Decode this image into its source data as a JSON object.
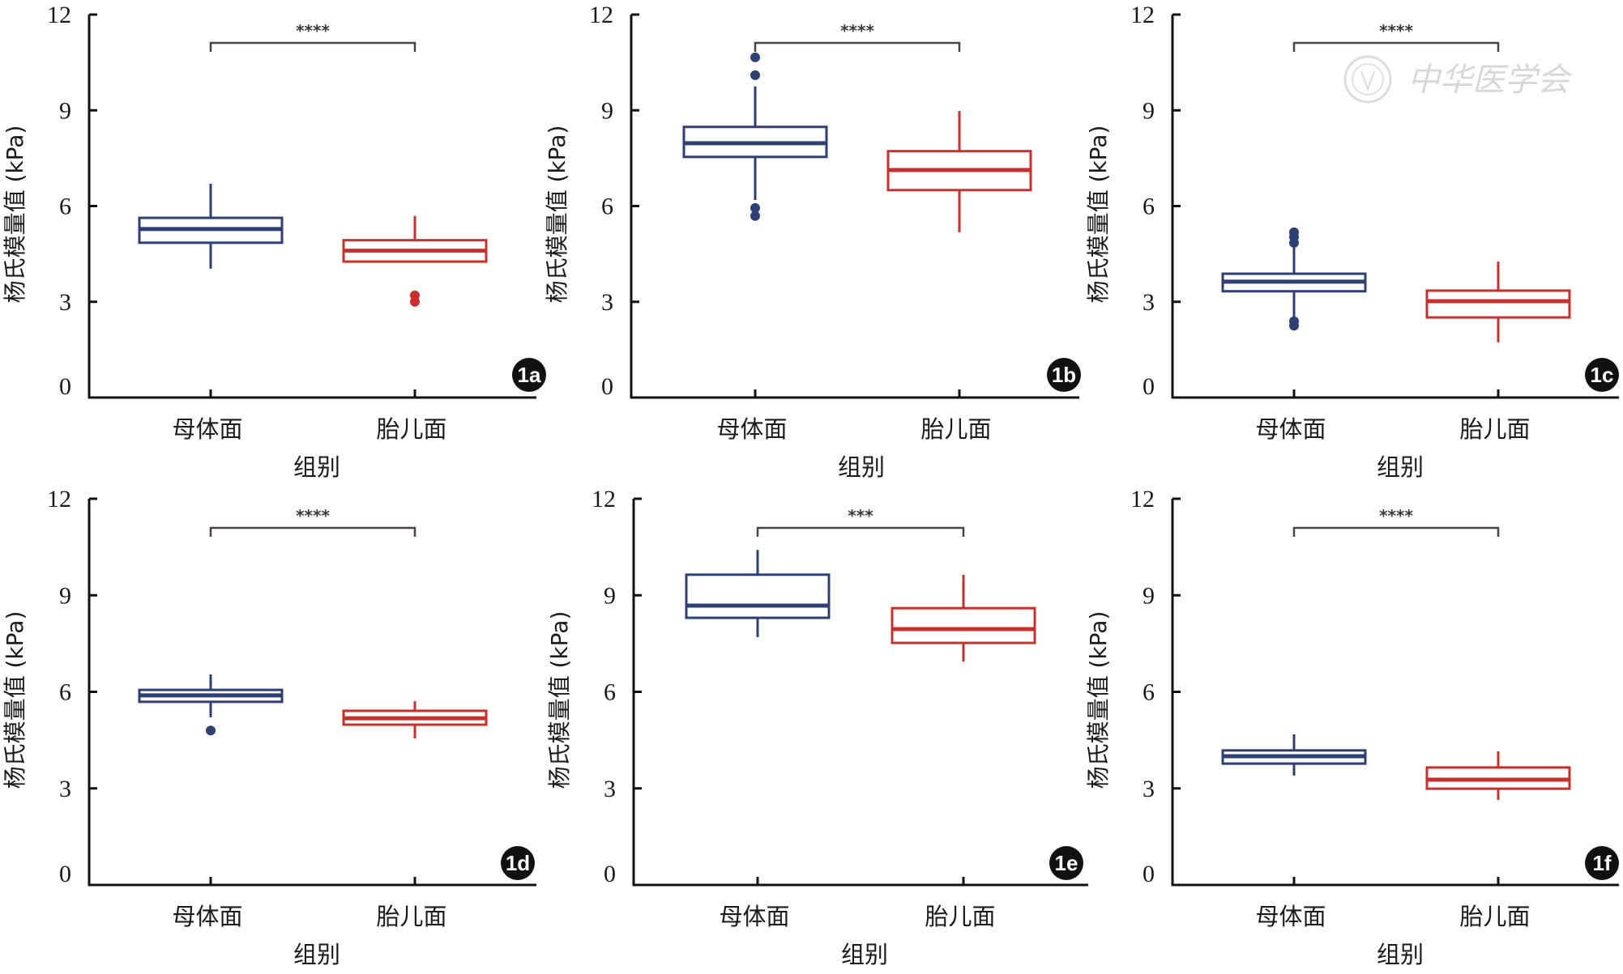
{
  "watermark": {
    "text": "中华医学会"
  },
  "colors": {
    "maternal": "#2e3f74",
    "fetal": "#c8312b",
    "bracket": "#4a4242",
    "axis": "#111111"
  },
  "chart_data": [
    {
      "type": "box",
      "panel": "1a",
      "ylabel": "杨氏模量值 (kPa)",
      "xlabel": "组别",
      "ylim": [
        0,
        12
      ],
      "yticks": [
        "0",
        "3",
        "6",
        "9",
        "12"
      ],
      "categories": [
        "母体面",
        "胎儿面"
      ],
      "significance": "****",
      "series": [
        {
          "name": "母体面",
          "whisker_low": 4.04,
          "q1": 4.85,
          "median": 5.28,
          "q3": 5.63,
          "whisker_high": 6.7,
          "outliers": []
        },
        {
          "name": "胎儿面",
          "whisker_low": 4.26,
          "q1": 4.26,
          "median": 4.6,
          "q3": 4.93,
          "whisker_high": 5.69,
          "outliers": [
            3.2,
            3.0
          ]
        }
      ]
    },
    {
      "type": "box",
      "panel": "1b",
      "ylabel": "杨氏模量值 (kPa)",
      "xlabel": "组别",
      "ylim": [
        0,
        12
      ],
      "yticks": [
        "0",
        "3",
        "6",
        "9",
        "12"
      ],
      "categories": [
        "母体面",
        "胎儿面"
      ],
      "significance": "****",
      "series": [
        {
          "name": "母体面",
          "whisker_low": 6.19,
          "q1": 7.54,
          "median": 7.97,
          "q3": 8.48,
          "whisker_high": 9.75,
          "outliers": [
            10.66,
            10.1,
            5.94,
            5.69
          ]
        },
        {
          "name": "胎儿面",
          "whisker_low": 5.18,
          "q1": 6.5,
          "median": 7.13,
          "q3": 7.72,
          "whisker_high": 8.98,
          "outliers": []
        }
      ]
    },
    {
      "type": "box",
      "panel": "1c",
      "ylabel": "杨氏模量值 (kPa)",
      "xlabel": "组别",
      "ylim": [
        0,
        12
      ],
      "yticks": [
        "0",
        "3",
        "6",
        "9",
        "12"
      ],
      "categories": [
        "母体面",
        "胎儿面"
      ],
      "significance": "****",
      "series": [
        {
          "name": "母体面",
          "whisker_low": 2.45,
          "q1": 3.33,
          "median": 3.63,
          "q3": 3.88,
          "whisker_high": 4.8,
          "outliers": [
            5.18,
            5.03,
            4.85,
            2.39,
            2.25
          ]
        },
        {
          "name": "胎儿面",
          "whisker_low": 1.73,
          "q1": 2.51,
          "median": 3.02,
          "q3": 3.35,
          "whisker_high": 4.26,
          "outliers": []
        }
      ]
    },
    {
      "type": "box",
      "panel": "1d",
      "ylabel": "杨氏模量值 (kPa)",
      "xlabel": "组别",
      "ylim": [
        0,
        12
      ],
      "yticks": [
        "0",
        "3",
        "6",
        "9",
        "12"
      ],
      "categories": [
        "母体面",
        "胎儿面"
      ],
      "significance": "****",
      "series": [
        {
          "name": "母体面",
          "whisker_low": 5.21,
          "q1": 5.69,
          "median": 5.89,
          "q3": 6.06,
          "whisker_high": 6.54,
          "outliers": [
            4.8
          ]
        },
        {
          "name": "胎儿面",
          "whisker_low": 4.55,
          "q1": 4.98,
          "median": 5.18,
          "q3": 5.41,
          "whisker_high": 5.71,
          "outliers": []
        }
      ]
    },
    {
      "type": "box",
      "panel": "1e",
      "ylabel": "杨氏模量值 (kPa)",
      "xlabel": "组别",
      "ylim": [
        0,
        12
      ],
      "yticks": [
        "0",
        "3",
        "6",
        "9",
        "12"
      ],
      "categories": [
        "母体面",
        "胎儿面"
      ],
      "significance": "***",
      "series": [
        {
          "name": "母体面",
          "whisker_low": 7.7,
          "q1": 8.3,
          "median": 8.68,
          "q3": 9.64,
          "whisker_high": 10.41,
          "outliers": []
        },
        {
          "name": "胎儿面",
          "whisker_low": 6.94,
          "q1": 7.52,
          "median": 7.95,
          "q3": 8.6,
          "whisker_high": 9.64,
          "outliers": []
        }
      ]
    },
    {
      "type": "box",
      "panel": "1f",
      "ylabel": "杨氏模量值 (kPa)",
      "xlabel": "组别",
      "ylim": [
        0,
        12
      ],
      "yticks": [
        "0",
        "3",
        "6",
        "9",
        "12"
      ],
      "categories": [
        "母体面",
        "胎儿面"
      ],
      "significance": "****",
      "series": [
        {
          "name": "母体面",
          "whisker_low": 3.4,
          "q1": 3.77,
          "median": 4.0,
          "q3": 4.18,
          "whisker_high": 4.68,
          "outliers": []
        },
        {
          "name": "胎儿面",
          "whisker_low": 2.64,
          "q1": 2.99,
          "median": 3.27,
          "q3": 3.65,
          "whisker_high": 4.15,
          "outliers": []
        }
      ]
    }
  ]
}
